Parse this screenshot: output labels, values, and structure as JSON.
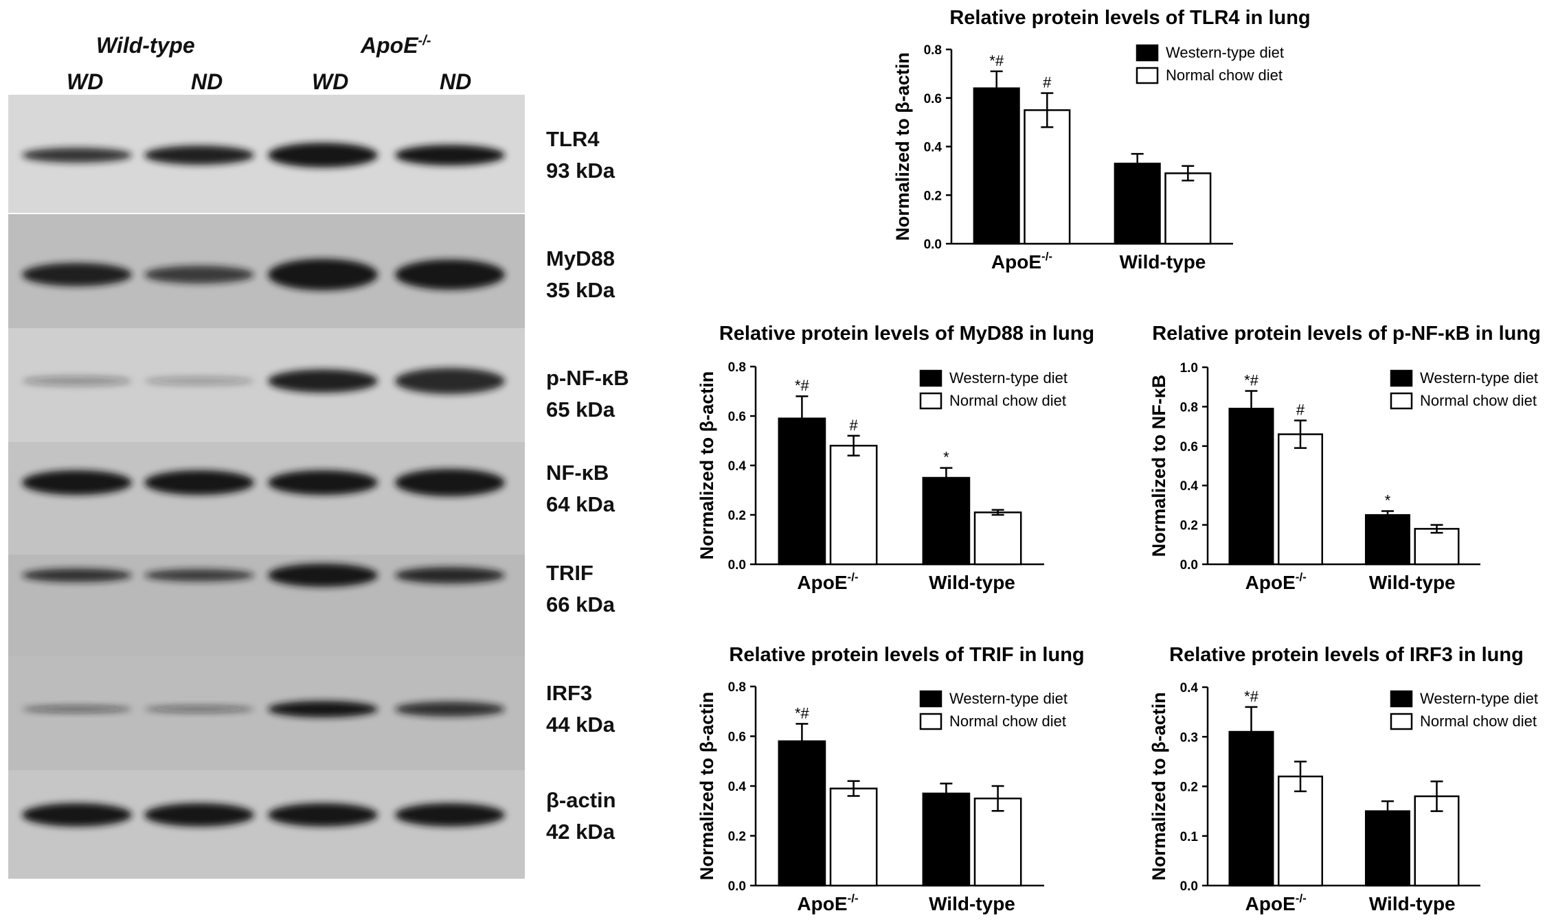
{
  "blot": {
    "group_headers": [
      {
        "label": "Wild-type",
        "sup": ""
      },
      {
        "label": "ApoE",
        "sup": "-/-"
      }
    ],
    "lane_labels": [
      "WD",
      "ND",
      "WD",
      "ND"
    ],
    "bands": [
      {
        "protein": "TLR4",
        "size": "93 kDa"
      },
      {
        "protein": "MyD88",
        "size": "35 kDa"
      },
      {
        "protein": "p-NF-κB",
        "size": "65 kDa"
      },
      {
        "protein": "NF-κB",
        "size": "64 kDa"
      },
      {
        "protein": "TRIF",
        "size": "66 kDa"
      },
      {
        "protein": "IRF3",
        "size": "44 kDa"
      },
      {
        "protein": "β-actin",
        "size": "42 kDa"
      }
    ],
    "colors": {
      "background": "#c9c9c9",
      "band": "#151515"
    }
  },
  "chart_data": [
    {
      "type": "bar",
      "title": "Relative protein levels of TLR4 in lung",
      "ylabel": "Normalized to β-actin",
      "categories": [
        {
          "label": "ApoE",
          "sup": "-/-"
        },
        {
          "label": "Wild-type",
          "sup": ""
        }
      ],
      "ylim": [
        0,
        0.8
      ],
      "yticks": [
        "0.0",
        "0.2",
        "0.4",
        "0.6",
        "0.8"
      ],
      "legend_position": "top-right",
      "series": [
        {
          "name": "Western-type diet",
          "color": "#000000",
          "values": [
            0.64,
            0.33
          ],
          "errors": [
            0.07,
            0.04
          ],
          "annotations": [
            "*#",
            ""
          ]
        },
        {
          "name": "Normal chow diet",
          "color": "#ffffff",
          "values": [
            0.55,
            0.29
          ],
          "errors": [
            0.07,
            0.03
          ],
          "annotations": [
            "#",
            ""
          ]
        }
      ]
    },
    {
      "type": "bar",
      "title": "Relative protein levels of MyD88 in lung",
      "ylabel": "Normalized to β-actin",
      "categories": [
        {
          "label": "ApoE",
          "sup": "-/-"
        },
        {
          "label": "Wild-type",
          "sup": ""
        }
      ],
      "ylim": [
        0,
        0.8
      ],
      "yticks": [
        "0.0",
        "0.2",
        "0.4",
        "0.6",
        "0.8"
      ],
      "legend_position": "top-right",
      "series": [
        {
          "name": "Western-type diet",
          "color": "#000000",
          "values": [
            0.59,
            0.35
          ],
          "errors": [
            0.09,
            0.04
          ],
          "annotations": [
            "*#",
            "*"
          ]
        },
        {
          "name": "Normal chow diet",
          "color": "#ffffff",
          "values": [
            0.48,
            0.21
          ],
          "errors": [
            0.04,
            0.01
          ],
          "annotations": [
            "#",
            ""
          ]
        }
      ]
    },
    {
      "type": "bar",
      "title": "Relative protein levels of p-NF-κB in lung",
      "ylabel": "Normalized to NF-κB",
      "categories": [
        {
          "label": "ApoE",
          "sup": "-/-"
        },
        {
          "label": "Wild-type",
          "sup": ""
        }
      ],
      "ylim": [
        0,
        1.0
      ],
      "yticks": [
        "0.0",
        "0.2",
        "0.4",
        "0.6",
        "0.8",
        "1.0"
      ],
      "legend_position": "top-right",
      "series": [
        {
          "name": "Western-type diet",
          "color": "#000000",
          "values": [
            0.79,
            0.25
          ],
          "errors": [
            0.09,
            0.02
          ],
          "annotations": [
            "*#",
            "*"
          ]
        },
        {
          "name": "Normal chow diet",
          "color": "#ffffff",
          "values": [
            0.66,
            0.18
          ],
          "errors": [
            0.07,
            0.02
          ],
          "annotations": [
            "#",
            ""
          ]
        }
      ]
    },
    {
      "type": "bar",
      "title": "Relative protein levels of TRIF in lung",
      "ylabel": "Normalized to β-actin",
      "categories": [
        {
          "label": "ApoE",
          "sup": "-/-"
        },
        {
          "label": "Wild-type",
          "sup": ""
        }
      ],
      "ylim": [
        0,
        0.8
      ],
      "yticks": [
        "0.0",
        "0.2",
        "0.4",
        "0.6",
        "0.8"
      ],
      "legend_position": "top-right",
      "series": [
        {
          "name": "Western-type diet",
          "color": "#000000",
          "values": [
            0.58,
            0.37
          ],
          "errors": [
            0.07,
            0.04
          ],
          "annotations": [
            "*#",
            ""
          ]
        },
        {
          "name": "Normal chow diet",
          "color": "#ffffff",
          "values": [
            0.39,
            0.35
          ],
          "errors": [
            0.03,
            0.05
          ],
          "annotations": [
            "",
            ""
          ]
        }
      ]
    },
    {
      "type": "bar",
      "title": "Relative protein levels of IRF3 in lung",
      "ylabel": "Normalized to β-actin",
      "categories": [
        {
          "label": "ApoE",
          "sup": "-/-"
        },
        {
          "label": "Wild-type",
          "sup": ""
        }
      ],
      "ylim": [
        0,
        0.4
      ],
      "yticks": [
        "0.0",
        "0.1",
        "0.2",
        "0.3",
        "0.4"
      ],
      "legend_position": "top-right",
      "series": [
        {
          "name": "Western-type diet",
          "color": "#000000",
          "values": [
            0.31,
            0.15
          ],
          "errors": [
            0.05,
            0.02
          ],
          "annotations": [
            "*#",
            ""
          ]
        },
        {
          "name": "Normal chow diet",
          "color": "#ffffff",
          "values": [
            0.22,
            0.18
          ],
          "errors": [
            0.03,
            0.03
          ],
          "annotations": [
            "",
            ""
          ]
        }
      ]
    }
  ]
}
